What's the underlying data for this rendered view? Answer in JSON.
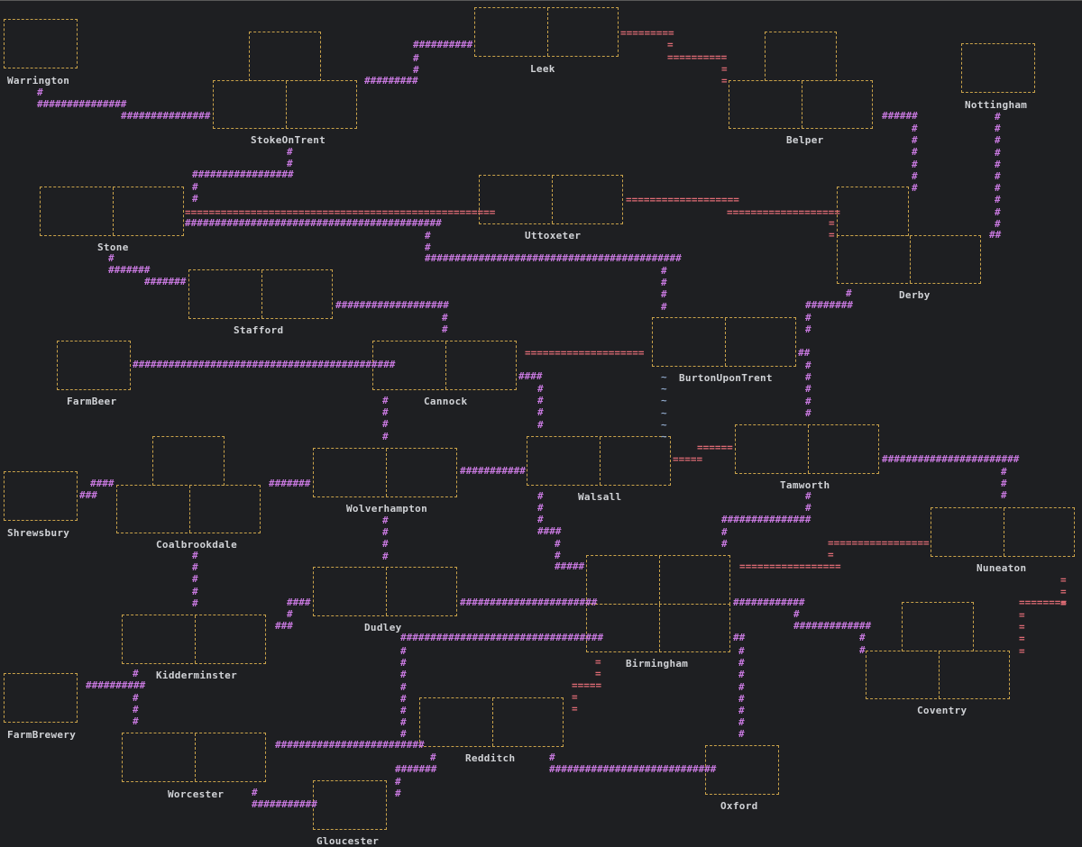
{
  "colors": {
    "background": "#1e1f22",
    "town_border": "#c9a24a",
    "label": "#d0d2d6",
    "rail_link": "#c678dd",
    "canal_link": "#e06c75",
    "river_mark": "#8fa7c9"
  },
  "towns": [
    {
      "id": "warrington",
      "name": "Warrington"
    },
    {
      "id": "leek",
      "name": "Leek"
    },
    {
      "id": "stoke",
      "name": "StokeOnTrent"
    },
    {
      "id": "belper",
      "name": "Belper"
    },
    {
      "id": "nottingham",
      "name": "Nottingham"
    },
    {
      "id": "stone",
      "name": "Stone"
    },
    {
      "id": "uttoxeter",
      "name": "Uttoxeter"
    },
    {
      "id": "derby",
      "name": "Derby"
    },
    {
      "id": "stafford",
      "name": "Stafford"
    },
    {
      "id": "farmbeer",
      "name": "FarmBeer"
    },
    {
      "id": "cannock",
      "name": "Cannock"
    },
    {
      "id": "burton",
      "name": "BurtonUponTrent"
    },
    {
      "id": "shrewsbury",
      "name": "Shrewsbury"
    },
    {
      "id": "coalbrookdale",
      "name": "Coalbrookdale"
    },
    {
      "id": "wolverhampton",
      "name": "Wolverhampton"
    },
    {
      "id": "walsall",
      "name": "Walsall"
    },
    {
      "id": "tamworth",
      "name": "Tamworth"
    },
    {
      "id": "nuneaton",
      "name": "Nuneaton"
    },
    {
      "id": "dudley",
      "name": "Dudley"
    },
    {
      "id": "birmingham",
      "name": "Birmingham"
    },
    {
      "id": "coventry",
      "name": "Coventry"
    },
    {
      "id": "kidderminster",
      "name": "Kidderminster"
    },
    {
      "id": "farmbrewery",
      "name": "FarmBrewery"
    },
    {
      "id": "redditch",
      "name": "Redditch"
    },
    {
      "id": "worcester",
      "name": "Worcester"
    },
    {
      "id": "oxford",
      "name": "Oxford"
    },
    {
      "id": "gloucester",
      "name": "Gloucester"
    }
  ],
  "links": {
    "rail_glyph": "#",
    "canal_glyph": "=",
    "river_glyph": "~"
  }
}
